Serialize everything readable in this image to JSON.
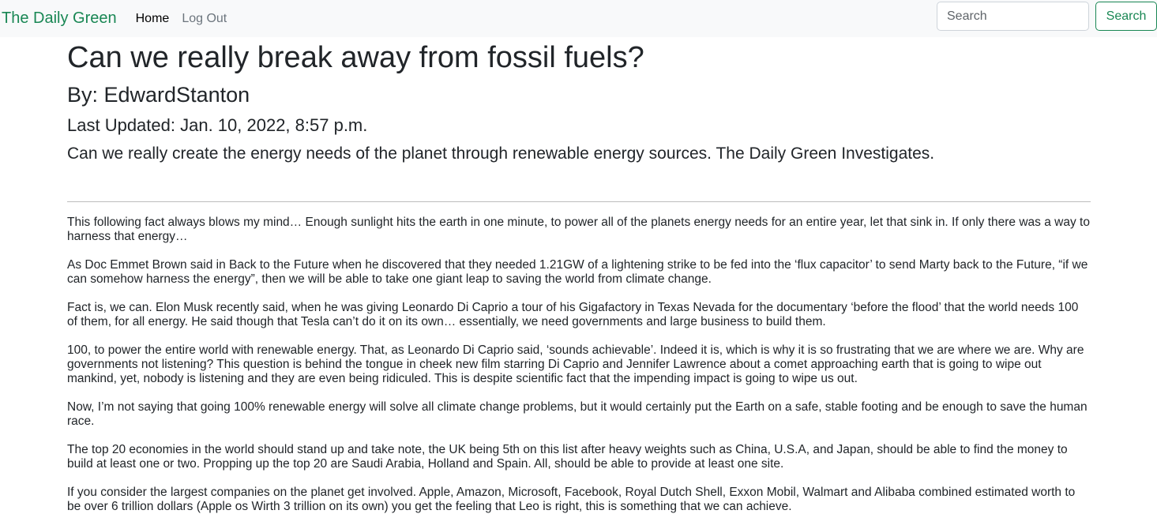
{
  "nav": {
    "brand": "The Daily Green",
    "home": "Home",
    "logout": "Log Out",
    "search_placeholder": "Search",
    "search_button": "Search"
  },
  "article": {
    "title": "Can we really break away from fossil fuels?",
    "byline": "By: EdwardStanton",
    "updated": "Last Updated: Jan. 10, 2022, 8:57 p.m.",
    "summary": "Can we really create the energy needs of the planet through renewable energy sources. The Daily Green Investigates.",
    "paragraphs": [
      "This following fact always blows my mind… Enough sunlight hits the earth in one minute, to power all of the planets energy needs for an entire year, let that sink in. If only there was a way to harness that energy…",
      "As Doc Emmet Brown said in Back to the Future when he discovered that they needed 1.21GW of a lightening strike to be fed into the ‘flux capacitor’ to send Marty back to the Future, “if we can somehow harness the energy”, then we will be able to take one giant leap to saving the world from climate change.",
      "Fact is, we can. Elon Musk recently said, when he was giving Leonardo Di Caprio a tour of his Gigafactory in Texas Nevada for the documentary ‘before the flood’ that the world needs 100 of them, for all energy. He said though that Tesla can’t do it on its own… essentially, we need governments and large business to build them.",
      "100, to power the entire world with renewable energy. That, as Leonardo Di Caprio said, ‘sounds achievable’. Indeed it is, which is why it is so frustrating that we are where we are. Why are governments not listening? This question is behind the tongue in cheek new film starring Di Caprio and Jennifer Lawrence about a comet approaching earth that is going to wipe out mankind, yet, nobody is listening and they are even being ridiculed. This is despite scientific fact that the impending impact is going to wipe us out.",
      "Now, I’m not saying that going 100% renewable energy will solve all climate change problems, but it would certainly put the Earth on a safe, stable footing and be enough to save the human race.",
      "The top 20 economies in the world should stand up and take note, the UK being 5th on this list after heavy weights such as China, U.S.A, and Japan, should be able to find the money to build at least one or two. Propping up the top 20 are Saudi Arabia, Holland and Spain. All, should be able to provide at least one site.",
      "If you consider the largest companies on the planet get involved. Apple, Amazon, Microsoft, Facebook, Royal Dutch Shell, Exxon Mobil, Walmart and Alibaba combined estimated worth to be over 6 trillion dollars (Apple os Wirth 3 trillion on its own) you get the feeling that Leo is right, this is something that we can achieve."
    ]
  }
}
